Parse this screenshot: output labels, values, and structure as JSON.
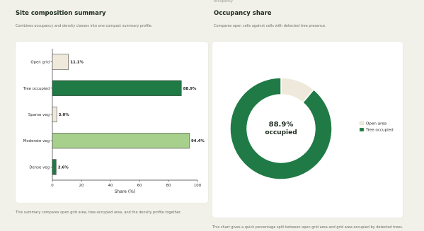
{
  "left_panel": {
    "title": "Site composition summary",
    "subtitle": "Combines occupancy and density classes into one compact summary profile.",
    "footnote": "This summary compares open grid area, tree-occupied area, and the density profile together."
  },
  "right_panel": {
    "clipped_top_text": "occupancy",
    "title": "Occupancy share",
    "subtitle": "Compares open cells against cells with detected tree presence.",
    "footnote": "This chart gives a quick percentage split between open grid area and grid area occupied by detected trees."
  },
  "chart_data": [
    {
      "type": "bar",
      "orientation": "horizontal",
      "categories": [
        "Open grid",
        "Tree occupied",
        "Sparse veg",
        "Moderate veg",
        "Dense veg"
      ],
      "values": [
        11.1,
        88.9,
        3.0,
        94.4,
        2.6
      ],
      "data_labels": [
        "11.1%",
        "88.9%",
        "3.0%",
        "94.4%",
        "2.6%"
      ],
      "bar_colors": [
        "#efe9dc",
        "#1f7a45",
        "#efe9dc",
        "#a6d08c",
        "#1f7a45"
      ],
      "xlabel": "Share (%)",
      "xlim": [
        0,
        100
      ],
      "xticks": [
        0,
        20,
        40,
        60,
        80,
        100
      ],
      "grid": false,
      "legend": false
    },
    {
      "type": "pie",
      "donut": true,
      "labels": [
        "Open area",
        "Tree occupied"
      ],
      "values": [
        11.1,
        88.9
      ],
      "colors": [
        "#efe9dc",
        "#1f7a45"
      ],
      "center_value": "88.9%",
      "center_label": "occupied",
      "legend": "right"
    }
  ]
}
